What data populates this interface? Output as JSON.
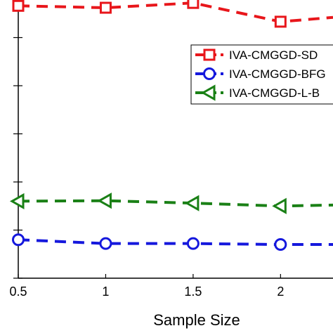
{
  "chart_data": {
    "type": "line",
    "xlabel": "Sample Size",
    "ylabel": "",
    "xlim": [
      0.5,
      2.3
    ],
    "ylim": [
      0,
      6
    ],
    "x_ticks": [
      {
        "value": 0.5,
        "label": "0.5"
      },
      {
        "value": 1,
        "label": "1"
      },
      {
        "value": 1.5,
        "label": "1.5"
      },
      {
        "value": 2,
        "label": "2"
      }
    ],
    "y_ticks": [
      0,
      1,
      2,
      3,
      4,
      5,
      6
    ],
    "legend_position": "top-right",
    "series": [
      {
        "name": "IVA-CMGGD-SD",
        "color": "#e8161b",
        "marker": "square",
        "x": [
          0.5,
          1,
          1.5,
          2,
          2.3
        ],
        "y": [
          5.66,
          5.62,
          5.72,
          5.33,
          5.42
        ]
      },
      {
        "name": "IVA-CMGGD-BFG",
        "color": "#1518dd",
        "marker": "circle",
        "x": [
          0.5,
          1,
          1.5,
          2,
          2.3
        ],
        "y": [
          0.8,
          0.72,
          0.72,
          0.7,
          0.7
        ]
      },
      {
        "name": "IVA-CMGGD-L-B",
        "color": "#1a8016",
        "marker": "triangle-left",
        "x": [
          0.5,
          1,
          1.5,
          2,
          2.3
        ],
        "y": [
          1.6,
          1.61,
          1.56,
          1.5,
          1.52
        ]
      }
    ]
  }
}
